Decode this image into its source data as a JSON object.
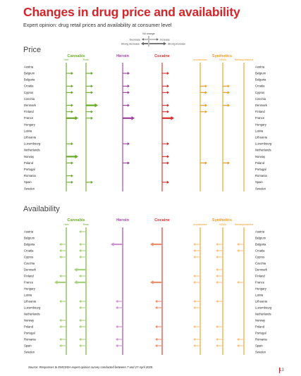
{
  "title": "Changes in drug price and availability",
  "subtitle": "Expert opinion: drug retail prices and availability at consumer level",
  "legend": {
    "no_change": "No change",
    "decrease": "Decrease",
    "strong_decrease": "Strong decrease",
    "increase": "Increase",
    "strong_increase": "Strong increase"
  },
  "source": "Source: Responses to EMCDDA expert opinion survey conducted between 7 and 27 April 2020.",
  "page_number": "13",
  "colors": {
    "title": "#d4252a",
    "cannabis": "#6aaa2a",
    "heroin": "#9c3fa0",
    "cocaine": "#d62e2a",
    "synthetics": "#f39a1e",
    "cannabis_light": "#a9d07a",
    "heroin_light": "#cf8fd2",
    "cocaine_light": "#e8906e",
    "synthetics_light": "#f7c180"
  },
  "chart_data": [
    {
      "type": "table",
      "title": "Price",
      "value_scale": {
        "-2": "Strong decrease",
        "-1": "Decrease",
        "0": "No change",
        "1": "Increase",
        "2": "Strong increase"
      },
      "groups": [
        {
          "name": "Cannabis",
          "color_key": "cannabis",
          "columns": [
            "Herb",
            "Resin"
          ]
        },
        {
          "name": "Heroin",
          "color_key": "heroin",
          "columns": [
            ""
          ]
        },
        {
          "name": "Cocaine",
          "color_key": "cocaine",
          "columns": [
            ""
          ]
        },
        {
          "name": "Synthetics",
          "color_key": "synthetics",
          "columns": [
            "Amphetamine",
            "MDMA",
            "Methamphetamine"
          ]
        }
      ],
      "countries": [
        "Austria",
        "Belgium",
        "Bulgaria",
        "Croatia",
        "Cyprus",
        "Czechia",
        "Denmark",
        "Finland",
        "France",
        "Hungary",
        "Latvia",
        "Lithuania",
        "Luxembourg",
        "Netherlands",
        "Norway",
        "Poland",
        "Portugal",
        "Romania",
        "Spain",
        "Sweden"
      ],
      "values": [
        [
          0,
          0,
          0,
          0,
          0,
          0,
          0
        ],
        [
          1,
          1,
          1,
          1,
          0,
          0,
          0
        ],
        [
          0,
          0,
          0,
          0,
          0,
          0,
          0
        ],
        [
          1,
          1,
          1,
          1,
          1,
          1,
          0
        ],
        [
          1,
          1,
          1,
          1,
          1,
          1,
          0
        ],
        [
          0,
          0,
          0,
          0,
          0,
          0,
          0
        ],
        [
          1,
          2,
          1,
          1,
          1,
          1,
          0
        ],
        [
          1,
          1,
          0,
          1,
          1,
          0,
          0
        ],
        [
          2,
          1,
          2,
          2,
          0,
          0,
          0
        ],
        [
          0,
          0,
          0,
          0,
          0,
          0,
          0
        ],
        [
          0,
          0,
          0,
          0,
          0,
          0,
          0
        ],
        [
          0,
          0,
          0,
          0,
          0,
          0,
          0
        ],
        [
          1,
          0,
          1,
          1,
          0,
          0,
          0
        ],
        [
          0,
          0,
          0,
          0,
          0,
          0,
          0
        ],
        [
          2,
          0,
          0,
          1,
          0,
          0,
          0
        ],
        [
          1,
          0,
          1,
          1,
          1,
          1,
          0
        ],
        [
          0,
          0,
          0,
          0,
          0,
          0,
          0
        ],
        [
          1,
          0,
          0,
          0,
          0,
          0,
          0
        ],
        [
          1,
          1,
          0,
          1,
          0,
          0,
          0
        ],
        [
          0,
          0,
          0,
          0,
          0,
          0,
          0
        ]
      ]
    },
    {
      "type": "table",
      "title": "Availability",
      "value_scale": {
        "-2": "Strong decrease",
        "-1": "Decrease",
        "0": "No change",
        "1": "Increase",
        "2": "Strong increase"
      },
      "groups": [
        {
          "name": "Cannabis",
          "color_key": "cannabis",
          "columns": [
            "Herb",
            "Resin"
          ]
        },
        {
          "name": "Heroin",
          "color_key": "heroin",
          "columns": [
            ""
          ]
        },
        {
          "name": "Cocaine",
          "color_key": "cocaine",
          "columns": [
            ""
          ]
        },
        {
          "name": "Synthetics",
          "color_key": "synthetics",
          "columns": [
            "Amphetamine",
            "MDMA",
            "Methamphetamine"
          ]
        }
      ],
      "countries": [
        "Austria",
        "Belgium",
        "Bulgaria",
        "Croatia",
        "Cyprus",
        "Czechia",
        "Denmark",
        "Finland",
        "France",
        "Hungary",
        "Latvia",
        "Lithuania",
        "Luxembourg",
        "Netherlands",
        "Norway",
        "Poland",
        "Portugal",
        "Romania",
        "Spain",
        "Sweden"
      ],
      "values": [
        [
          0,
          -1,
          0,
          0,
          0,
          0,
          0
        ],
        [
          0,
          0,
          0,
          0,
          0,
          0,
          0
        ],
        [
          -1,
          -1,
          -2,
          -2,
          -1,
          -1,
          -1
        ],
        [
          -1,
          -1,
          0,
          0,
          -1,
          -1,
          -1
        ],
        [
          -1,
          -1,
          0,
          0,
          -1,
          -1,
          0
        ],
        [
          0,
          0,
          0,
          0,
          0,
          0,
          0
        ],
        [
          0,
          -2,
          0,
          0,
          0,
          -1,
          0
        ],
        [
          -1,
          -1,
          0,
          0,
          -1,
          -1,
          0
        ],
        [
          -2,
          -2,
          0,
          -2,
          -1,
          -1,
          -1
        ],
        [
          0,
          0,
          0,
          0,
          0,
          0,
          0
        ],
        [
          0,
          0,
          0,
          0,
          0,
          0,
          0
        ],
        [
          -1,
          -1,
          -1,
          -1,
          -1,
          -1,
          0
        ],
        [
          0,
          -1,
          -1,
          -1,
          -1,
          0,
          0
        ],
        [
          0,
          0,
          0,
          0,
          0,
          0,
          0
        ],
        [
          -1,
          -1,
          0,
          0,
          0,
          0,
          0
        ],
        [
          -1,
          -1,
          -1,
          -1,
          -1,
          -1,
          0
        ],
        [
          0,
          0,
          0,
          0,
          0,
          0,
          0
        ],
        [
          -1,
          -1,
          -1,
          -1,
          -1,
          -1,
          -1
        ],
        [
          -1,
          -1,
          -1,
          -1,
          -1,
          -1,
          -1
        ],
        [
          0,
          0,
          0,
          0,
          0,
          0,
          0
        ]
      ]
    }
  ]
}
